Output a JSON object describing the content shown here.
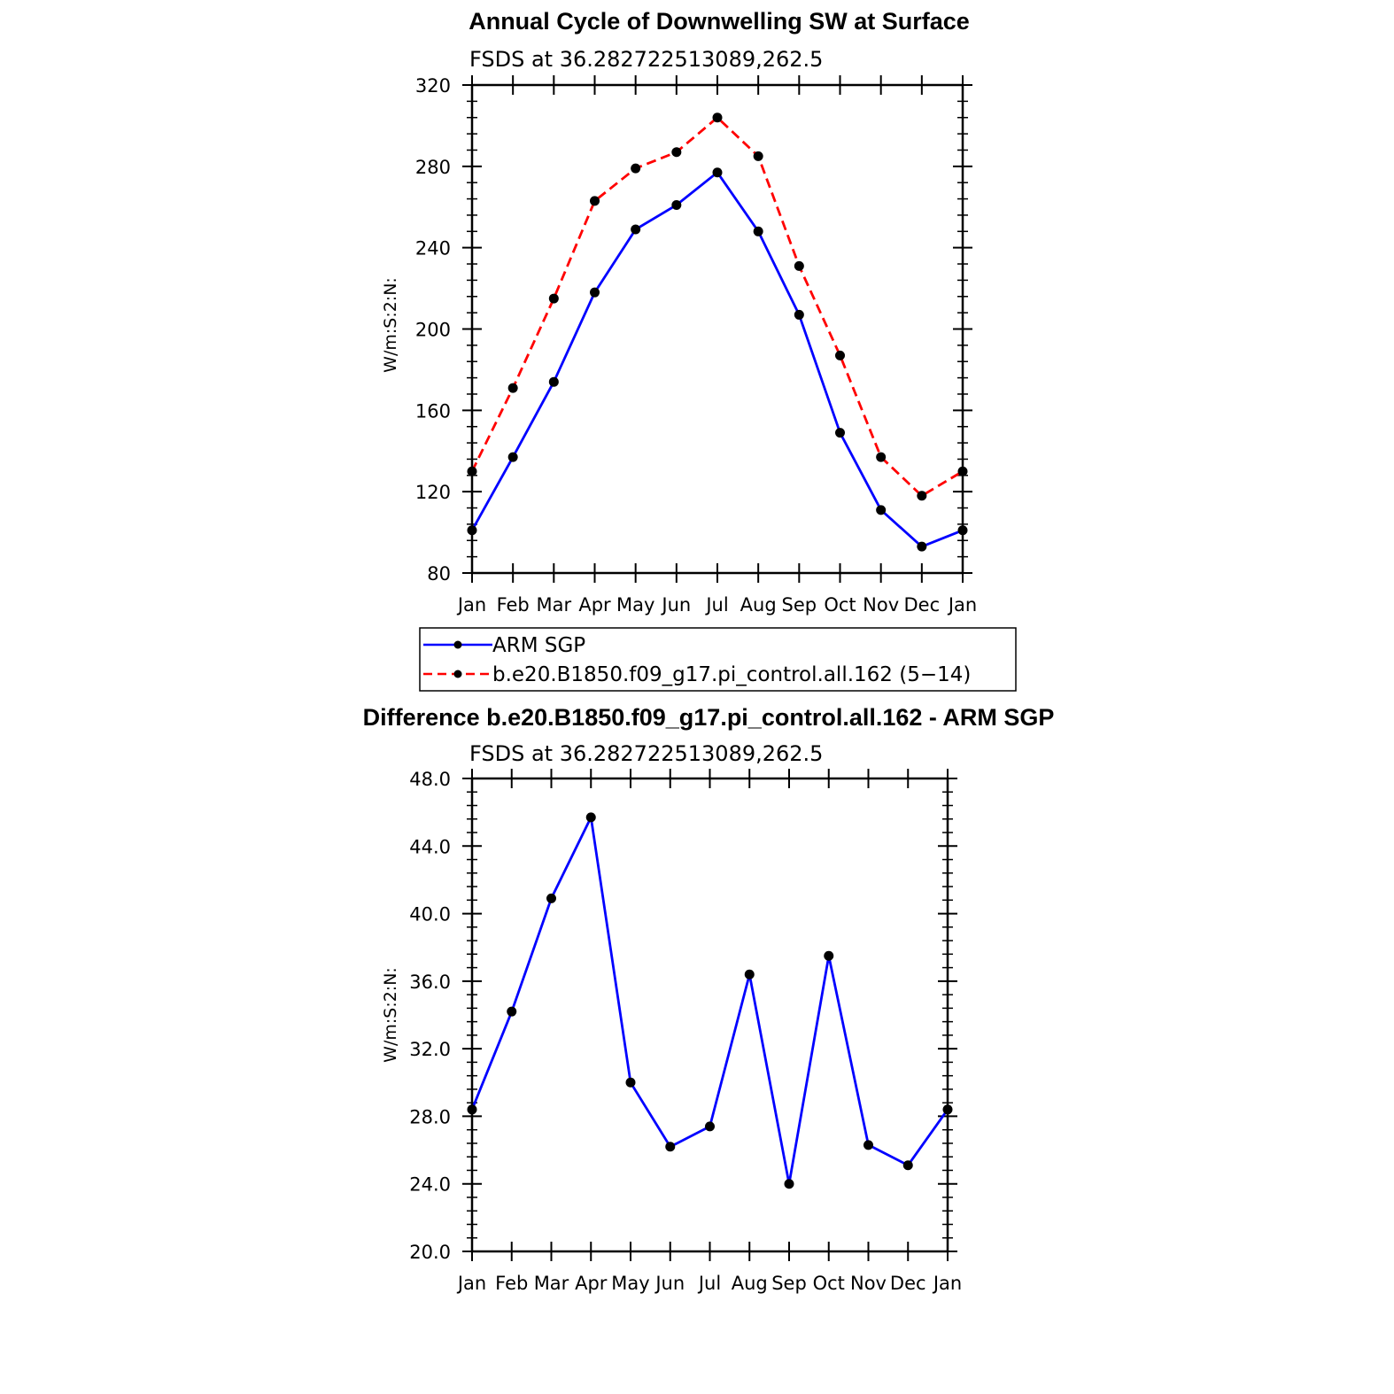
{
  "chart_data": [
    {
      "type": "line",
      "title": "Annual Cycle of Downwelling SW at Surface",
      "subtitle": "FSDS at 36.282722513089,262.5",
      "ylabel": "W/m:S:2:N:",
      "ylim": [
        80,
        320
      ],
      "yticks": [
        "80",
        "120",
        "160",
        "200",
        "240",
        "280",
        "320"
      ],
      "categories": [
        "Jan",
        "Feb",
        "Mar",
        "Apr",
        "May",
        "Jun",
        "Jul",
        "Aug",
        "Sep",
        "Oct",
        "Nov",
        "Dec",
        "Jan"
      ],
      "series": [
        {
          "name": "ARM SGP",
          "color": "#0000ff",
          "dash": "solid",
          "values": [
            101,
            137,
            174,
            218,
            249,
            261,
            277,
            248,
            207,
            149,
            111,
            93,
            101
          ]
        },
        {
          "name": "b.e20.B1850.f09_g17.pi_control.all.162 (5−14)",
          "color": "#ff0000",
          "dash": "dashed",
          "values": [
            130,
            171,
            215,
            263,
            279,
            287,
            304,
            285,
            231,
            187,
            137,
            118,
            130
          ]
        }
      ],
      "legend": "below"
    },
    {
      "type": "line",
      "title": "Difference b.e20.B1850.f09_g17.pi_control.all.162 - ARM SGP",
      "subtitle": "FSDS at 36.282722513089,262.5",
      "ylabel": "W/m:S:2:N:",
      "ylim": [
        20,
        48
      ],
      "yticks": [
        "20.0",
        "24.0",
        "28.0",
        "32.0",
        "36.0",
        "40.0",
        "44.0",
        "48.0"
      ],
      "categories": [
        "Jan",
        "Feb",
        "Mar",
        "Apr",
        "May",
        "Jun",
        "Jul",
        "Aug",
        "Sep",
        "Oct",
        "Nov",
        "Dec",
        "Jan"
      ],
      "series": [
        {
          "color": "#0000ff",
          "dash": "solid",
          "values": [
            28.4,
            34.2,
            40.9,
            45.7,
            30.0,
            26.2,
            27.4,
            36.4,
            24.0,
            37.5,
            26.3,
            25.1,
            28.4
          ]
        }
      ]
    }
  ]
}
